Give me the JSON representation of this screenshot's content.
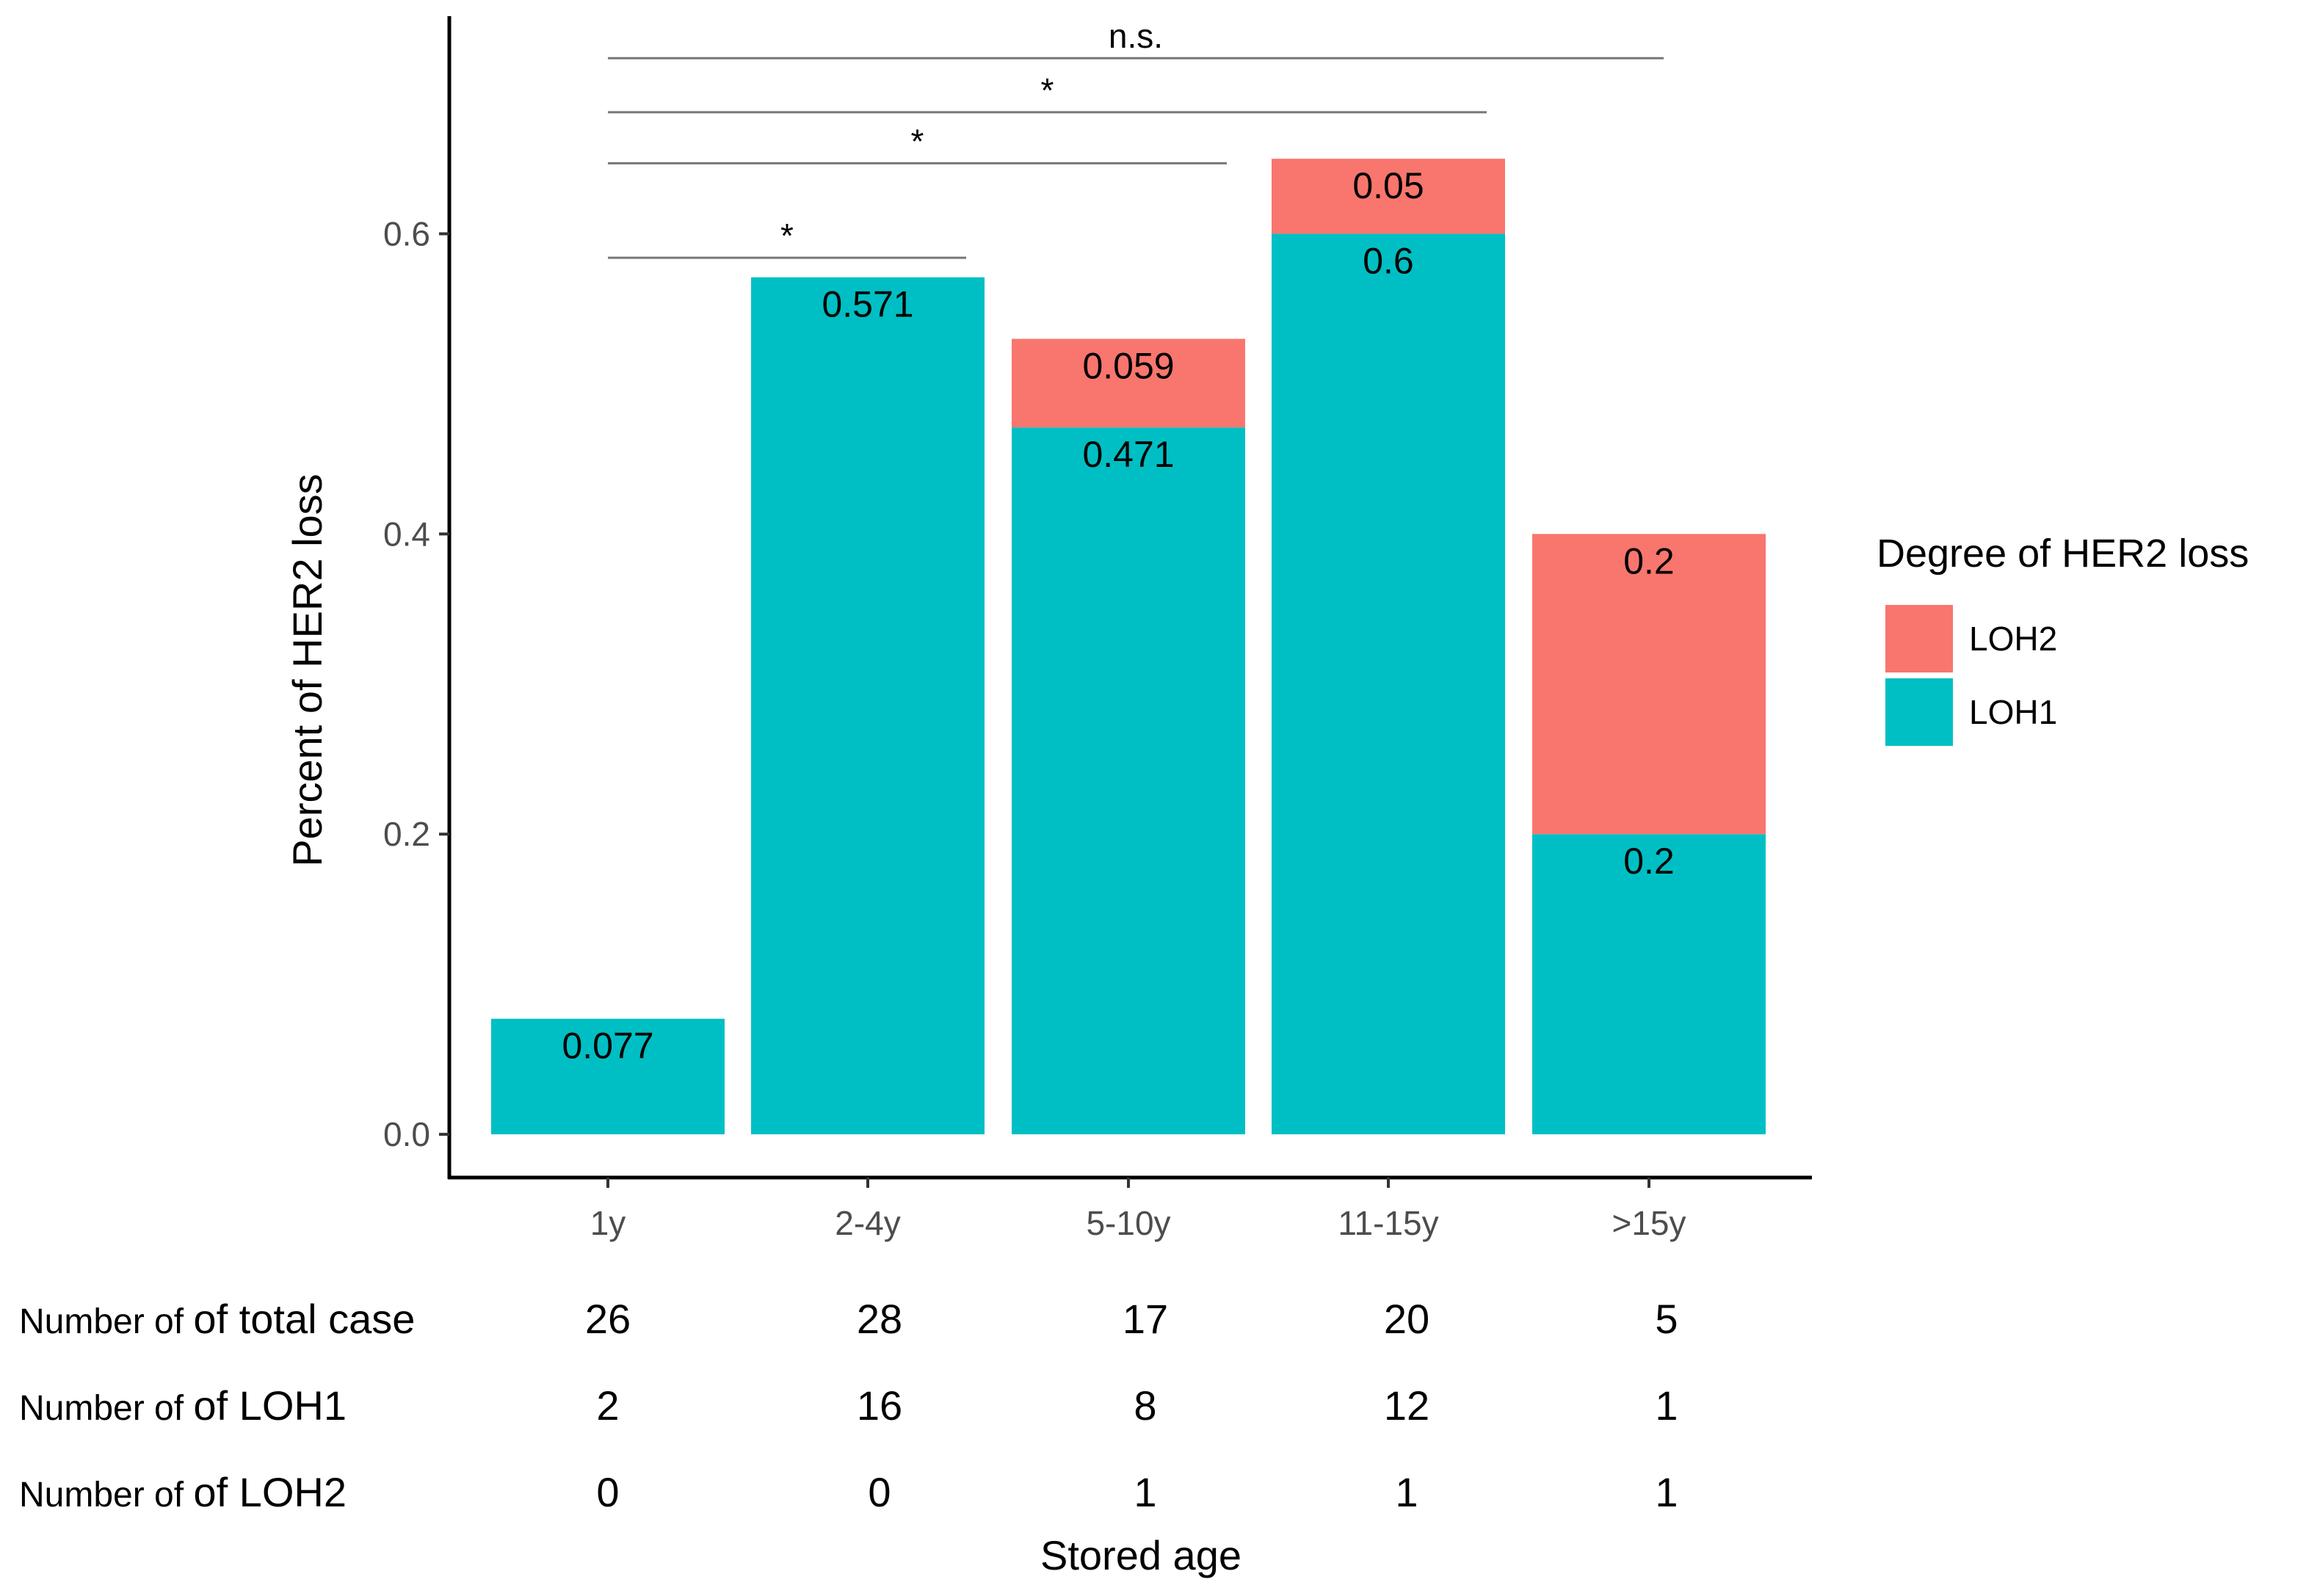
{
  "chart_data": {
    "type": "bar",
    "stacked": true,
    "title": "",
    "xlabel": "Stored age",
    "ylabel": "Percent of HER2 loss",
    "ylim": [
      -0.0288,
      0.745
    ],
    "yticks": [
      0.0,
      0.2,
      0.4,
      0.6
    ],
    "ytick_labels": [
      "0.0",
      "0.2",
      "0.4",
      "0.6"
    ],
    "categories": [
      "1y",
      "2-4y",
      "5-10y",
      "11-15y",
      ">15y"
    ],
    "series": [
      {
        "name": "LOH1",
        "color": "#00BFC4",
        "values": [
          0.077,
          0.571,
          0.471,
          0.6,
          0.2
        ],
        "labels": [
          "0.077",
          "0.571",
          "0.471",
          "0.6",
          "0.2"
        ]
      },
      {
        "name": "LOH2",
        "color": "#F8766D",
        "values": [
          0,
          0,
          0.059,
          0.05,
          0.2
        ],
        "labels": [
          "",
          "",
          "0.059",
          "0.05",
          "0.2"
        ]
      }
    ],
    "legend": {
      "title": "Degree of HER2 loss",
      "placement": "right",
      "entries": [
        {
          "name": "LOH2",
          "color": "#F8766D"
        },
        {
          "name": "LOH1",
          "color": "#00BFC4"
        }
      ]
    },
    "significance": [
      {
        "from": "1y",
        "to": "2-4y",
        "label": "*",
        "y": 0.584
      },
      {
        "from": "1y",
        "to": "5-10y",
        "label": "*",
        "y": 0.647
      },
      {
        "from": "1y",
        "to": "11-15y",
        "label": "*",
        "y": 0.681
      },
      {
        "from": "1y",
        "to": ">15y",
        "label": "n.s.",
        "y": 0.717
      }
    ],
    "table": {
      "rows": [
        {
          "prefix": "Number of",
          "label": "of total case",
          "values": [
            "26",
            "28",
            "17",
            "20",
            "5"
          ]
        },
        {
          "prefix": "Number of",
          "label": "of LOH1",
          "values": [
            "2",
            "16",
            "8",
            "12",
            "1"
          ]
        },
        {
          "prefix": "Number of",
          "label": "of LOH2",
          "values": [
            "0",
            "0",
            "1",
            "1",
            "1"
          ]
        }
      ]
    }
  }
}
